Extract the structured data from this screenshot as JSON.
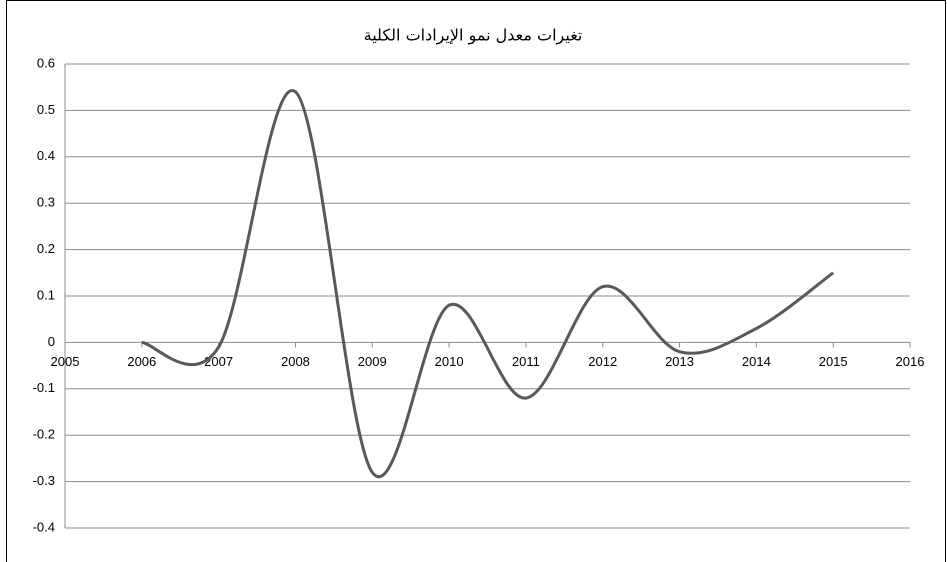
{
  "chart_data": {
    "type": "line",
    "title": "تغيرات معدل نمو الإيرادات الكلية",
    "x": [
      2006,
      2007,
      2008,
      2009,
      2010,
      2011,
      2012,
      2013,
      2014,
      2015
    ],
    "series": [
      {
        "color": "#595959",
        "values": [
          0,
          -0.01,
          0.54,
          -0.28,
          0.08,
          -0.12,
          0.12,
          -0.02,
          0.03,
          0.15
        ]
      }
    ],
    "xlim": [
      2005,
      2016
    ],
    "xticks": [
      2005,
      2006,
      2007,
      2008,
      2009,
      2010,
      2011,
      2012,
      2013,
      2014,
      2015,
      2016
    ],
    "ylim": [
      -0.4,
      0.6
    ],
    "yticks": [
      0.6,
      0.5,
      0.4,
      0.3,
      0.2,
      0.1,
      0,
      -0.1,
      -0.2,
      -0.3,
      -0.4
    ],
    "grid": true,
    "smooth": true
  }
}
